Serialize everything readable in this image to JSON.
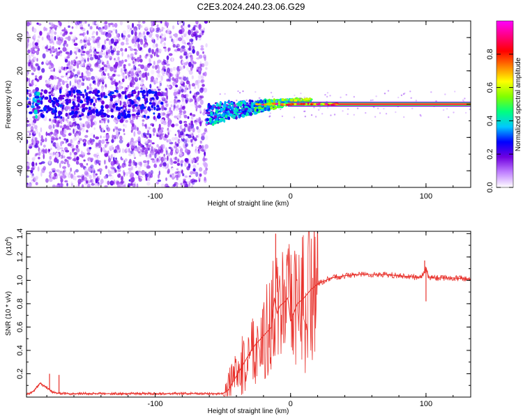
{
  "title": "C2E3.2024.240.23.06.G29",
  "chart_data": [
    {
      "type": "heatmap",
      "title": "C2E3.2024.240.23.06.G29",
      "xlabel": "Height of straight line (km)",
      "ylabel": "Frequency (Hz)",
      "xlim": [
        -195,
        133
      ],
      "ylim": [
        -50,
        50
      ],
      "xticks": [
        -100,
        0,
        100
      ],
      "xtick_labels": [
        "-100",
        "0",
        "100"
      ],
      "yticks": [
        -40,
        -20,
        0,
        20,
        40
      ],
      "ytick_labels": [
        "-40",
        "-20",
        "0",
        "20",
        "40"
      ],
      "colorbar": {
        "label": "Normalized spectral amplitude",
        "range": [
          0,
          1
        ],
        "ticks": [
          0.0,
          0.2,
          0.4,
          0.6,
          0.8
        ],
        "tick_labels": [
          "0.0",
          "0.2",
          "0.4",
          "0.6",
          "0.8"
        ],
        "colors": [
          "#ffffff",
          "#c080ff",
          "#7000e0",
          "#0000ff",
          "#00c8ff",
          "#00ff80",
          "#80ff00",
          "#ffff00",
          "#ff8000",
          "#ff0000",
          "#ff0080",
          "#ff00ff"
        ]
      },
      "features": {
        "noise_region_x": [
          -195,
          -62
        ],
        "transition_x": [
          -62,
          -30
        ],
        "tone_x": [
          -10,
          133
        ],
        "tone_frequency": 0,
        "tone_peak_amplitude": 0.9
      },
      "grid": false
    },
    {
      "type": "line",
      "xlabel": "Height of straight line (km)",
      "ylabel": "SNR (10 * v/v)",
      "y_multiplier_label": "(x10",
      "y_multiplier_exp": "4",
      "y_multiplier_close": ")",
      "xlim": [
        -195,
        133
      ],
      "ylim": [
        0,
        1.42
      ],
      "xticks": [
        -100,
        0,
        100
      ],
      "xtick_labels": [
        "-100",
        "0",
        "100"
      ],
      "yticks": [
        0.2,
        0.4,
        0.6,
        0.8,
        1.0,
        1.2,
        1.4
      ],
      "ytick_labels": [
        "0.2",
        "0.4",
        "0.6",
        "0.8",
        "1.0",
        "1.2",
        "1.4"
      ],
      "series": [
        {
          "color": "#e8302a",
          "x": [
            -195,
            -190,
            -185,
            -180,
            -175,
            -170,
            -160,
            -140,
            -120,
            -100,
            -80,
            -60,
            -50,
            -46,
            -42,
            -38,
            -34,
            -30,
            -26,
            -22,
            -18,
            -14,
            -12,
            -10,
            -8,
            -6,
            -4,
            -2,
            0,
            5,
            10,
            15,
            20,
            30,
            40,
            50,
            60,
            70,
            80,
            90,
            95,
            98,
            100,
            102,
            105,
            110,
            120,
            133
          ],
          "y": [
            0.02,
            0.05,
            0.12,
            0.08,
            0.04,
            0.03,
            0.03,
            0.03,
            0.03,
            0.03,
            0.03,
            0.03,
            0.03,
            0.06,
            0.14,
            0.22,
            0.3,
            0.38,
            0.45,
            0.5,
            0.55,
            0.6,
            0.85,
            0.72,
            0.78,
            0.8,
            0.82,
            0.85,
            0.65,
            0.8,
            0.85,
            0.92,
            0.97,
            1.02,
            1.04,
            1.05,
            1.05,
            1.05,
            1.04,
            1.03,
            1.02,
            1.05,
            1.1,
            1.03,
            1.02,
            1.02,
            1.02,
            1.01
          ]
        }
      ],
      "spikes": [
        {
          "x": -178,
          "y": 0.2
        },
        {
          "x": -171,
          "y": 0.19
        },
        {
          "x": -11,
          "y": 1.4
        },
        {
          "x": 100,
          "y": 0.82
        },
        {
          "x": 99,
          "y": 1.17
        }
      ],
      "grid": false
    }
  ]
}
